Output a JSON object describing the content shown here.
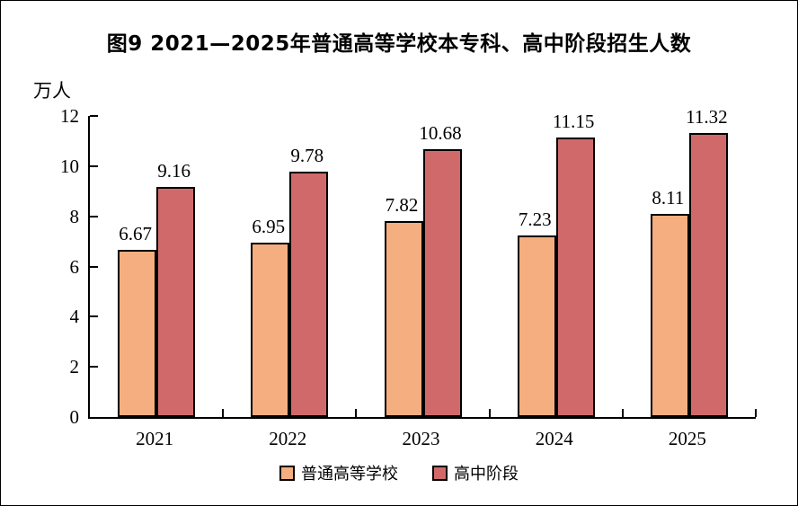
{
  "figure": {
    "title": "图9  2021—2025年普通高等学校本专科、高中阶段招生人数",
    "unit_label": "万人"
  },
  "chart_data": {
    "type": "bar",
    "title": "图9 2021—2025年普通高等学校本专科、高中阶段招生人数",
    "ylabel": "万人",
    "xlabel": "",
    "categories": [
      "2021",
      "2022",
      "2023",
      "2024",
      "2025"
    ],
    "series": [
      {
        "name": "普通高等学校",
        "color": "#F4AE80",
        "values": [
          6.67,
          6.95,
          7.82,
          7.23,
          8.11
        ]
      },
      {
        "name": "高中阶段",
        "color": "#D06A6A",
        "values": [
          9.16,
          9.78,
          10.68,
          11.15,
          11.32
        ]
      }
    ],
    "ylim": [
      0,
      12
    ],
    "ytick_step": 2,
    "grid": false,
    "data_labels": true,
    "legend_position": "bottom",
    "bar_outline_color": "#000000"
  }
}
